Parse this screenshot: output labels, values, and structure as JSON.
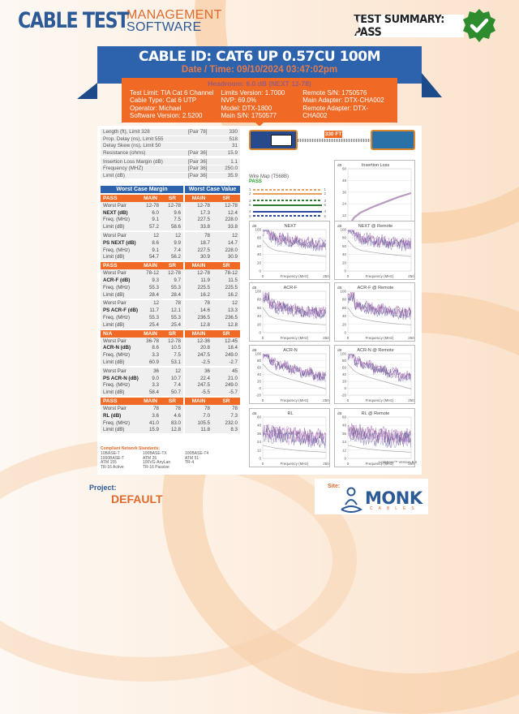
{
  "header": {
    "logo_main": "CABLE TEST",
    "logo_sub1": "MANAGEMENT",
    "logo_sub2": "SOFTWARE",
    "test_summary": "TEST SUMMARY: PASS",
    "summary_icon": "check-badge-icon",
    "summary_color": "#2e8b2e"
  },
  "banner": {
    "cable_id": "CABLE ID: CAT6 UP 0.57CU 100M",
    "datetime": "Date / Time: 09/10/2024 03:47:02pm"
  },
  "info": {
    "headroom": "Headroom: 6.0 dB (NEXT 12-78)",
    "col1": [
      "Test Limit: TIA Cat 6 Channel",
      "Cable Type: Cat 6 UTP",
      "Operator: Michael",
      "Software Version: 2.5200"
    ],
    "col2": [
      "Limits Version: 1.7000",
      "NVP: 69.0%",
      "Model: DTX-1800",
      "Main S/N: 1750577"
    ],
    "col3": [
      "Remote S/N: 1750576",
      "Main Adapter: DTX-CHA002",
      "Remote Adapter: DTX-CHA002"
    ]
  },
  "specs": [
    {
      "key": "Length (ft), Limit 328",
      "pair": "[Pair 78]",
      "value": "330"
    },
    {
      "key": "Prop. Delay (ns), Limit 555",
      "pair": "",
      "value": "518"
    },
    {
      "key": "Delay Skew (ns), Limit 50",
      "pair": "",
      "value": "31"
    },
    {
      "key": "Resistance (ohms)",
      "pair": "[Pair 36]",
      "value": "15.9"
    },
    {
      "key": "Insertion Loss Margin (dB)",
      "pair": "[Pair 36]",
      "value": "1.1"
    },
    {
      "key": "Frequency (MHZ)",
      "pair": "[Pair 36]",
      "value": "250.0"
    },
    {
      "key": "Limit (dB)",
      "pair": "[Pair 36]",
      "value": "35.9"
    }
  ],
  "worst_case": {
    "header_margin": "Worst Case Margin",
    "header_value": "Worst Case Value",
    "col_main": "MAIN",
    "col_sr": "SR",
    "sections": [
      {
        "status": "PASS",
        "groups": [
          {
            "name": "NEXT (dB)",
            "rows": [
              [
                "Worst Pair",
                "12-78",
                "12-78",
                "12-78",
                "12-78"
              ],
              [
                "NEXT (dB)",
                "6.0",
                "9.6",
                "17.3",
                "12.4"
              ],
              [
                "Freq. (MHz)",
                "9.1",
                "7.5",
                "227.5",
                "228.0"
              ],
              [
                "Limit (dB)",
                "57.2",
                "58.6",
                "33.8",
                "33.8"
              ]
            ]
          },
          {
            "name": "PS NEXT (dB)",
            "rows": [
              [
                "Worst Pair",
                "12",
                "12",
                "78",
                "12"
              ],
              [
                "PS NEXT (dB)",
                "8.6",
                "9.9",
                "18.7",
                "14.7"
              ],
              [
                "Freq. (MHz)",
                "9.1",
                "7.4",
                "227.5",
                "228.0"
              ],
              [
                "Limit (dB)",
                "54.7",
                "56.2",
                "30.9",
                "30.9"
              ]
            ]
          }
        ]
      },
      {
        "status": "PASS",
        "groups": [
          {
            "name": "ACR-F (dB)",
            "rows": [
              [
                "Worst Pair",
                "78-12",
                "12-78",
                "12-78",
                "78-12"
              ],
              [
                "ACR-F (dB)",
                "9.3",
                "9.7",
                "11.9",
                "11.5"
              ],
              [
                "Freq. (MHz)",
                "55.3",
                "55.3",
                "225.5",
                "225.5"
              ],
              [
                "Limit (dB)",
                "28.4",
                "28.4",
                "16.2",
                "16.2"
              ]
            ]
          },
          {
            "name": "PS ACR-F (dB)",
            "rows": [
              [
                "Worst Pair",
                "12",
                "78",
                "78",
                "12"
              ],
              [
                "PS ACR-F (dB)",
                "11.7",
                "12.1",
                "14.6",
                "13.3"
              ],
              [
                "Freq. (MHz)",
                "55.3",
                "55.3",
                "236.5",
                "236.5"
              ],
              [
                "Limit (dB)",
                "25.4",
                "25.4",
                "12.8",
                "12.8"
              ]
            ]
          }
        ]
      },
      {
        "status": "N/A",
        "groups": [
          {
            "name": "ACR-N (dB)",
            "rows": [
              [
                "Worst Pair",
                "36-78",
                "12-78",
                "12-36",
                "12-45"
              ],
              [
                "ACR-N (dB)",
                "8.6",
                "10.5",
                "20.8",
                "18.4"
              ],
              [
                "Freq. (MHz)",
                "3.3",
                "7.5",
                "247.5",
                "249.0"
              ],
              [
                "Limit (dB)",
                "60.9",
                "53.1",
                "-2.5",
                "-2.7"
              ]
            ]
          },
          {
            "name": "PS ACR-N (dB)",
            "rows": [
              [
                "Worst Pair",
                "36",
                "12",
                "36",
                "45"
              ],
              [
                "PS ACR-N (dB)",
                "9.0",
                "10.7",
                "22.4",
                "21.0"
              ],
              [
                "Freq. (MHz)",
                "3.3",
                "7.4",
                "247.5",
                "249.0"
              ],
              [
                "Limit (dB)",
                "58.4",
                "50.7",
                "-5.5",
                "-5.7"
              ]
            ]
          }
        ]
      },
      {
        "status": "PASS",
        "groups": [
          {
            "name": "RL (dB)",
            "rows": [
              [
                "Worst Pair",
                "78",
                "78",
                "78",
                "78"
              ],
              [
                "RL (dB)",
                "3.6",
                "4.6",
                "7.0",
                "7.3"
              ],
              [
                "Freq. (MHz)",
                "41.0",
                "83.0",
                "105.5",
                "232.0"
              ],
              [
                "Limit (dB)",
                "15.9",
                "12.8",
                "11.8",
                "8.3"
              ]
            ]
          }
        ]
      }
    ]
  },
  "standards": {
    "title": "Compliant Network Standards:",
    "items": [
      "10BASE-T",
      "100BASE-TX",
      "100BASE-T4",
      "1000BASE-T",
      "ATM 25",
      "ATM 51",
      "ATM 155",
      "100VG-AnyLan",
      "TR-4",
      "TR-16 Active",
      "TR-16 Passive",
      ""
    ]
  },
  "device": {
    "length_tag": "330 FT"
  },
  "wiremap": {
    "title": "Wire Map (T568B)",
    "status": "PASS",
    "wires": [
      {
        "n": "1",
        "color": "#e8a060",
        "dashed": true
      },
      {
        "n": "2",
        "color": "#e8a060",
        "dashed": false
      },
      {
        "n": "3",
        "color": "#2e7d32",
        "dashed": true
      },
      {
        "n": "6",
        "color": "#2e7d32",
        "dashed": false
      },
      {
        "n": "4",
        "color": "#2d4aa0",
        "dashed": false
      },
      {
        "n": "5",
        "color": "#2d4aa0",
        "dashed": true
      },
      {
        "n": "7",
        "color": "#7a5a3a",
        "dashed": true
      },
      {
        "n": "8",
        "color": "#7a5a3a",
        "dashed": false
      },
      {
        "n": "S",
        "color": "transparent",
        "dashed": false
      }
    ]
  },
  "chart_data": [
    {
      "type": "line",
      "title": "Insertion Loss",
      "xlabel": "Frequency (MHz)",
      "ylabel": "dB",
      "ylim": [
        0,
        60
      ],
      "yticks": [
        "60",
        "48",
        "36",
        "24",
        "12",
        "0"
      ],
      "xticks": [
        "0",
        "250"
      ],
      "series": [
        {
          "name": "measured",
          "x": [
            0,
            25,
            50,
            100,
            150,
            200,
            250
          ],
          "values": [
            0,
            10,
            15,
            21,
            26,
            31,
            35
          ]
        }
      ]
    },
    {
      "type": "line",
      "title": "NEXT",
      "xlabel": "Frequency (MHz)",
      "ylabel": "dB",
      "ylim": [
        0,
        100
      ],
      "yticks": [
        "100",
        "80",
        "60",
        "40",
        "20",
        "0"
      ],
      "xticks": [
        "0",
        "250"
      ],
      "series": [
        {
          "name": "limit",
          "x": [
            0,
            25,
            50,
            100,
            150,
            200,
            250
          ],
          "values": [
            74,
            57,
            50,
            45,
            41,
            38,
            35
          ]
        }
      ]
    },
    {
      "type": "line",
      "title": "NEXT @ Remote",
      "xlabel": "Frequency (MHz)",
      "ylabel": "dB",
      "ylim": [
        0,
        100
      ],
      "yticks": [
        "100",
        "80",
        "60",
        "40",
        "20",
        "0"
      ],
      "xticks": [
        "0",
        "250"
      ],
      "series": [
        {
          "name": "limit",
          "x": [
            0,
            25,
            50,
            100,
            150,
            200,
            250
          ],
          "values": [
            74,
            57,
            50,
            45,
            41,
            38,
            35
          ]
        }
      ]
    },
    {
      "type": "line",
      "title": "ACR-F",
      "xlabel": "Frequency (MHz)",
      "ylabel": "dB",
      "ylim": [
        0,
        100
      ],
      "yticks": [
        "100",
        "80",
        "60",
        "40",
        "20",
        "0"
      ],
      "xticks": [
        "0",
        "250"
      ],
      "series": [
        {
          "name": "limit",
          "x": [
            0,
            25,
            50,
            100,
            150,
            200,
            250
          ],
          "values": [
            60,
            40,
            34,
            28,
            24,
            21,
            19
          ]
        }
      ]
    },
    {
      "type": "line",
      "title": "ACR-F @ Remote",
      "xlabel": "Frequency (MHz)",
      "ylabel": "dB",
      "ylim": [
        0,
        100
      ],
      "yticks": [
        "100",
        "80",
        "60",
        "40",
        "20",
        "0"
      ],
      "xticks": [
        "0",
        "250"
      ],
      "series": [
        {
          "name": "limit",
          "x": [
            0,
            25,
            50,
            100,
            150,
            200,
            250
          ],
          "values": [
            60,
            40,
            34,
            28,
            24,
            21,
            19
          ]
        }
      ]
    },
    {
      "type": "line",
      "title": "ACR-N",
      "xlabel": "Frequency (MHz)",
      "ylabel": "dB",
      "ylim": [
        -20,
        100
      ],
      "yticks": [
        "100",
        "80",
        "60",
        "40",
        "20",
        "0",
        "-20"
      ],
      "xticks": [
        "0",
        "250"
      ],
      "series": [
        {
          "name": "limit",
          "x": [
            0,
            25,
            50,
            100,
            150,
            200,
            250
          ],
          "values": [
            70,
            50,
            40,
            28,
            18,
            8,
            -2
          ]
        }
      ]
    },
    {
      "type": "line",
      "title": "ACR-N @ Remote",
      "xlabel": "Frequency (MHz)",
      "ylabel": "dB",
      "ylim": [
        -20,
        100
      ],
      "yticks": [
        "100",
        "80",
        "60",
        "40",
        "20",
        "0",
        "-20"
      ],
      "xticks": [
        "0",
        "250"
      ],
      "series": [
        {
          "name": "limit",
          "x": [
            0,
            25,
            50,
            100,
            150,
            200,
            250
          ],
          "values": [
            70,
            50,
            40,
            28,
            18,
            8,
            -2
          ]
        }
      ]
    },
    {
      "type": "line",
      "title": "RL",
      "xlabel": "Frequency (MHz)",
      "ylabel": "dB",
      "ylim": [
        0,
        60
      ],
      "yticks": [
        "60",
        "48",
        "36",
        "24",
        "12",
        "0"
      ],
      "xticks": [
        "0",
        "250"
      ],
      "series": [
        {
          "name": "limit",
          "x": [
            0,
            25,
            50,
            100,
            150,
            200,
            250
          ],
          "values": [
            19,
            17,
            15,
            13,
            11,
            10,
            9
          ]
        }
      ]
    },
    {
      "type": "line",
      "title": "RL @ Remote",
      "xlabel": "Frequency (MHz)",
      "ylabel": "dB",
      "ylim": [
        0,
        60
      ],
      "yticks": [
        "60",
        "48",
        "36",
        "24",
        "12",
        "0"
      ],
      "xticks": [
        "0",
        "250"
      ],
      "series": [
        {
          "name": "limit",
          "x": [
            0,
            25,
            50,
            100,
            150,
            200,
            250
          ],
          "values": [
            19,
            17,
            15,
            13,
            11,
            10,
            9
          ]
        }
      ]
    }
  ],
  "linkware": "LinkWare™ Version 8.2",
  "footer": {
    "project_label": "Project:",
    "project_value": "DEFAULT",
    "site_label": "Site:",
    "site_logo": "MONK",
    "site_logo_sub": "CABLES"
  }
}
